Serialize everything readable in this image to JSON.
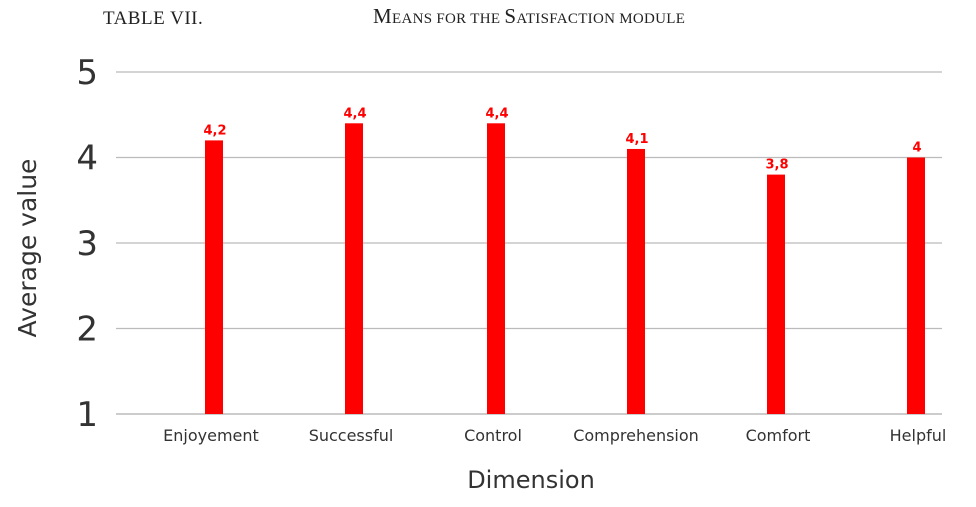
{
  "caption": {
    "table_number": "TABLE VII.",
    "title_first_letter_1": "M",
    "title_part_1": "EANS FOR THE ",
    "title_first_letter_2": "S",
    "title_part_2": "ATISFACTION MODULE"
  },
  "chart_data": {
    "type": "bar",
    "categories": [
      "Enjoyement",
      "Successful",
      "Control",
      "Comprehension",
      "Comfort",
      "Helpful"
    ],
    "values": [
      4.2,
      4.4,
      4.4,
      4.1,
      3.8,
      4
    ],
    "data_labels": [
      "4,2",
      "4,4",
      "4,4",
      "4,1",
      "3,8",
      "4"
    ],
    "xlabel": "Dimension",
    "ylabel": "Average value",
    "ylim": [
      1,
      5
    ],
    "yticks": [
      "1",
      "2",
      "3",
      "4",
      "5"
    ],
    "grid": true,
    "bar_color": "#ff0000",
    "grid_color": "#bbbbbb"
  }
}
